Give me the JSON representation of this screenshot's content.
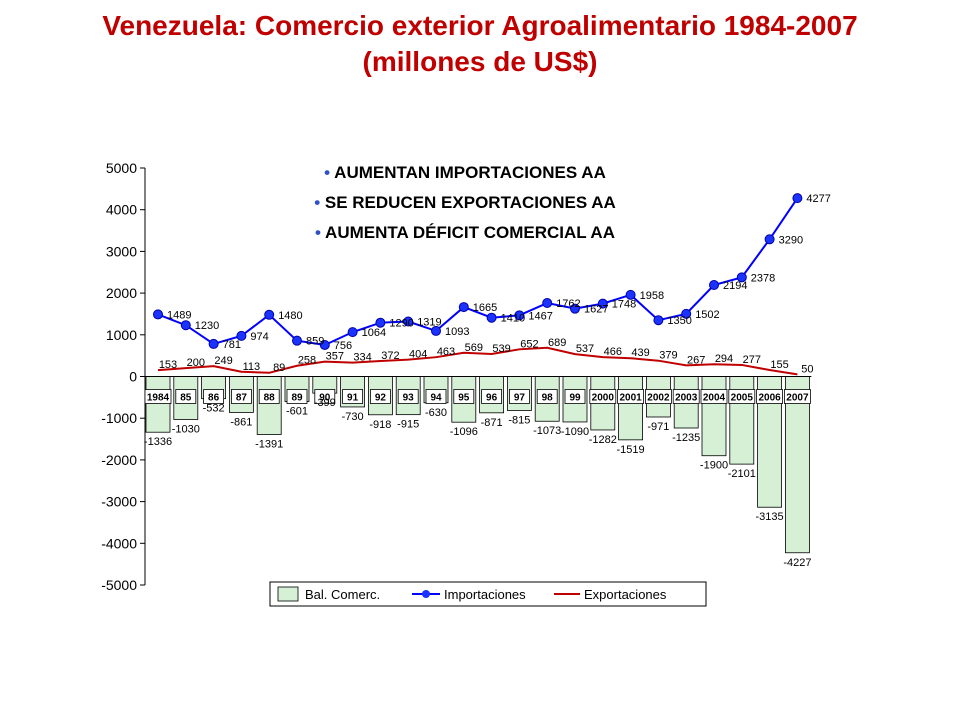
{
  "title_line1": "Venezuela: Comercio exterior Agroalimentario 1984-2007",
  "title_line2": "(millones de US$)",
  "annotations": [
    "AUMENTAN IMPORTACIONES AA",
    "SE REDUCEN EXPORTACIONES AA",
    "AUMENTA DÉFICIT COMERCIAL AA"
  ],
  "colors": {
    "title": "#c00000",
    "bar_fill": "#d6f0d6",
    "imports_line": "#0000ff",
    "imports_marker": "#1a33ff",
    "exports_line": "#c00000",
    "bullet": "#3050c8"
  },
  "chart_data": {
    "type": "bar",
    "categories": [
      "1984",
      "85",
      "86",
      "87",
      "88",
      "89",
      "90",
      "91",
      "92",
      "93",
      "94",
      "95",
      "96",
      "97",
      "98",
      "99",
      "2000",
      "2001",
      "2002",
      "2003",
      "2004",
      "2005",
      "2006",
      "2007"
    ],
    "ylim": [
      -5000,
      5000
    ],
    "yticks": [
      5000,
      4000,
      3000,
      2000,
      1000,
      0,
      -1000,
      -2000,
      -3000,
      -4000,
      -5000
    ],
    "grid": false,
    "legend_position": "bottom",
    "series": [
      {
        "name": "Bal. Comerc.",
        "type": "bar",
        "values": [
          -1336,
          -1030,
          -532,
          -861,
          -1391,
          -601,
          -399,
          -730,
          -918,
          -915,
          -630,
          -1096,
          -871,
          -815,
          -1073,
          -1090,
          -1282,
          -1519,
          -971,
          -1235,
          -1900,
          -2101,
          -3135,
          -4227
        ]
      },
      {
        "name": "Importaciones",
        "type": "line",
        "marker": "circle",
        "values": [
          1489,
          1230,
          781,
          974,
          1480,
          859,
          756,
          1064,
          1290,
          1319,
          1093,
          1665,
          1410,
          1467,
          1762,
          1627,
          1748,
          1958,
          1350,
          1502,
          2194,
          2378,
          3290,
          4277
        ]
      },
      {
        "name": "Exportaciones",
        "type": "line",
        "values": [
          153,
          200,
          249,
          113,
          89,
          258,
          357,
          334,
          372,
          404,
          463,
          569,
          539,
          652,
          689,
          537,
          466,
          439,
          379,
          267,
          294,
          277,
          155,
          50
        ]
      }
    ]
  }
}
